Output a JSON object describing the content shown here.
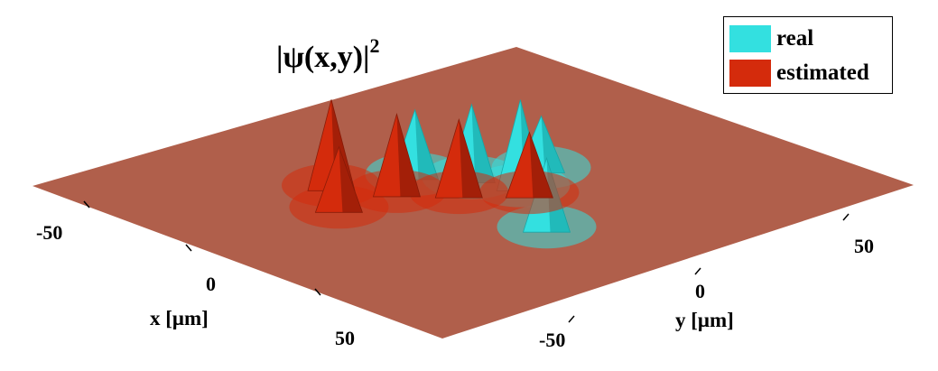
{
  "chart_data": {
    "type": "surface",
    "title_base": "|ψ(x,y)|",
    "title_sup": "2",
    "xlabel": "x [μm]",
    "ylabel": "y [μm]",
    "x_ticks": [
      "-50",
      "0",
      "50"
    ],
    "y_ticks": [
      "-50",
      "0",
      "50"
    ],
    "xlim": [
      -80,
      80
    ],
    "ylim": [
      -80,
      80
    ],
    "grid": false,
    "legend_position": "top-right",
    "series": [
      {
        "name": "real",
        "color": "#33e0e0",
        "peaks": [
          {
            "x": 5,
            "y": 12,
            "amp": 1.0
          },
          {
            "x": -8,
            "y": 8,
            "amp": 0.85
          },
          {
            "x": -20,
            "y": 0,
            "amp": 0.75
          },
          {
            "x": 30,
            "y": -5,
            "amp": 0.8
          },
          {
            "x": 0,
            "y": 25,
            "amp": 0.6
          }
        ]
      },
      {
        "name": "estimated",
        "color": "#d42b0c",
        "peaks": [
          {
            "x": -30,
            "y": -20,
            "amp": 1.0
          },
          {
            "x": -15,
            "y": -12,
            "amp": 0.9
          },
          {
            "x": -3,
            "y": -2,
            "amp": 0.85
          },
          {
            "x": -18,
            "y": -30,
            "amp": 0.7
          },
          {
            "x": 10,
            "y": 10,
            "amp": 0.7
          }
        ]
      }
    ],
    "floor_color": "#b05f4b"
  }
}
